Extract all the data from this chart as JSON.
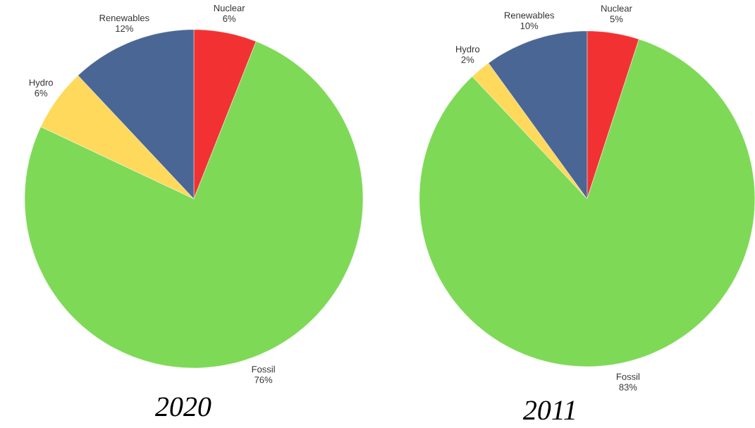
{
  "chart_data": [
    {
      "type": "pie",
      "title": "2020",
      "categories": [
        "Nuclear",
        "Fossil",
        "Hydro",
        "Renewables"
      ],
      "values": [
        6,
        76,
        6,
        12
      ],
      "value_labels": [
        "6%",
        "76%",
        "6%",
        "12%"
      ],
      "colors": [
        "#f23232",
        "#7ed957",
        "#ffd95c",
        "#4a6694"
      ]
    },
    {
      "type": "pie",
      "title": "2011",
      "categories": [
        "Nuclear",
        "Fossil",
        "Hydro",
        "Renewables"
      ],
      "values": [
        5,
        83,
        2,
        10
      ],
      "value_labels": [
        "5%",
        "83%",
        "2%",
        "10%"
      ],
      "colors": [
        "#f23232",
        "#7ed957",
        "#ffd95c",
        "#4a6694"
      ]
    }
  ]
}
